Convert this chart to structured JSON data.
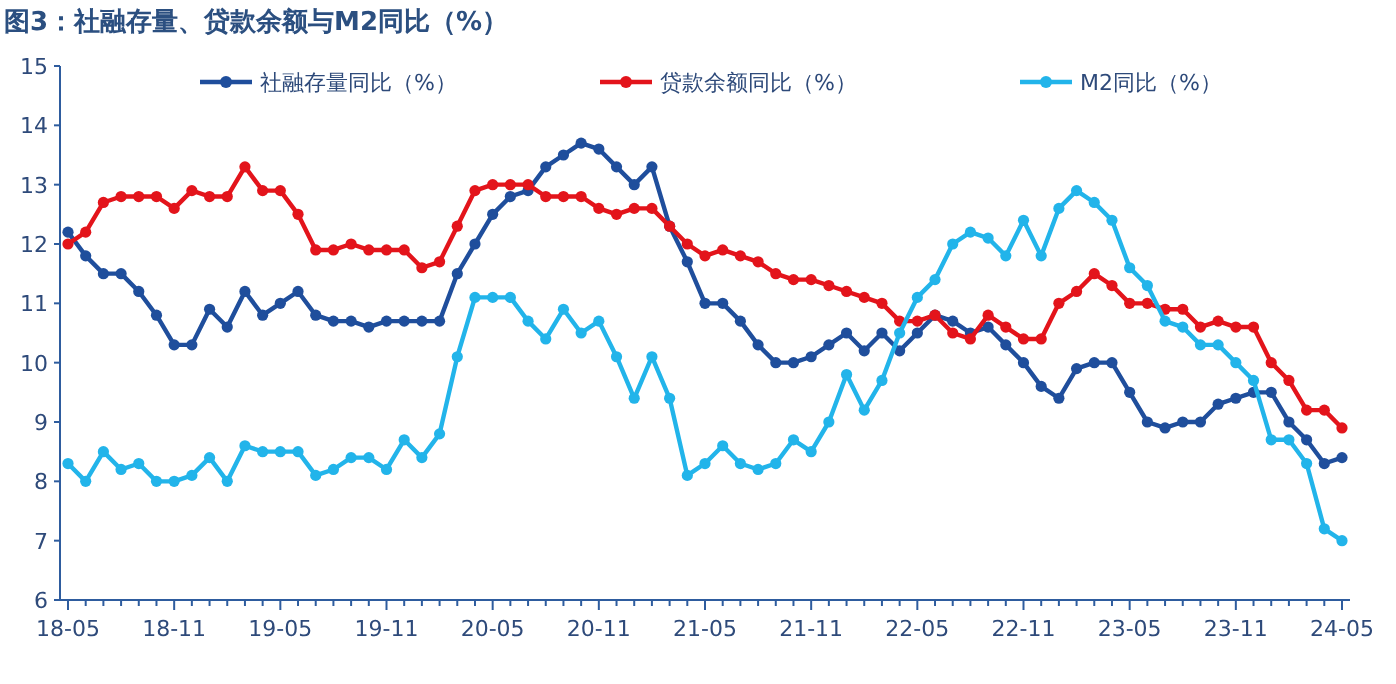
{
  "chart_data": {
    "type": "line",
    "title": "图3：社融存量、贷款余额与M2同比（%）",
    "categories": [
      "18-05",
      null,
      null,
      null,
      null,
      null,
      "18-11",
      null,
      null,
      null,
      null,
      null,
      "19-05",
      null,
      null,
      null,
      null,
      null,
      "19-11",
      null,
      null,
      null,
      null,
      null,
      "20-05",
      null,
      null,
      null,
      null,
      null,
      "20-11",
      null,
      null,
      null,
      null,
      null,
      "21-05",
      null,
      null,
      null,
      null,
      null,
      "21-11",
      null,
      null,
      null,
      null,
      null,
      "22-05",
      null,
      null,
      null,
      null,
      null,
      "22-11",
      null,
      null,
      null,
      null,
      null,
      "23-05",
      null,
      null,
      null,
      null,
      null,
      "23-11",
      null,
      null,
      null,
      null,
      null,
      "24-05"
    ],
    "series": [
      {
        "name": "社融存量同比（%）",
        "color": "#1f4e9c",
        "values": [
          12.2,
          11.8,
          11.5,
          11.5,
          11.2,
          10.8,
          10.3,
          10.3,
          10.9,
          10.6,
          11.2,
          10.8,
          11.0,
          11.2,
          10.8,
          10.7,
          10.7,
          10.6,
          10.7,
          10.7,
          10.7,
          10.7,
          11.5,
          12.0,
          12.5,
          12.8,
          12.9,
          13.3,
          13.5,
          13.7,
          13.6,
          13.3,
          13.0,
          13.3,
          12.3,
          11.7,
          11.0,
          11.0,
          10.7,
          10.3,
          10.0,
          10.0,
          10.1,
          10.3,
          10.5,
          10.2,
          10.5,
          10.2,
          10.5,
          10.8,
          10.7,
          10.5,
          10.6,
          10.3,
          10.0,
          9.6,
          9.4,
          9.9,
          10.0,
          10.0,
          9.5,
          9.0,
          8.9,
          9.0,
          9.0,
          9.3,
          9.4,
          9.5,
          9.5,
          9.0,
          8.7,
          8.3,
          8.4
        ]
      },
      {
        "name": "贷款余额同比（%）",
        "color": "#e3141b",
        "values": [
          12.0,
          12.2,
          12.7,
          12.8,
          12.8,
          12.8,
          12.6,
          12.9,
          12.8,
          12.8,
          13.3,
          12.9,
          12.9,
          12.5,
          11.9,
          11.9,
          12.0,
          11.9,
          11.9,
          11.9,
          11.6,
          11.7,
          12.3,
          12.9,
          13.0,
          13.0,
          13.0,
          12.8,
          12.8,
          12.8,
          12.6,
          12.5,
          12.6,
          12.6,
          12.3,
          12.0,
          11.8,
          11.9,
          11.8,
          11.7,
          11.5,
          11.4,
          11.4,
          11.3,
          11.2,
          11.1,
          11.0,
          10.7,
          10.7,
          10.8,
          10.5,
          10.4,
          10.8,
          10.6,
          10.4,
          10.4,
          11.0,
          11.2,
          11.5,
          11.3,
          11.0,
          11.0,
          10.9,
          10.9,
          10.6,
          10.7,
          10.6,
          10.6,
          10.0,
          9.7,
          9.2,
          9.2,
          8.9
        ]
      },
      {
        "name": "M2同比（%）",
        "color": "#22b4ea",
        "values": [
          8.3,
          8.0,
          8.5,
          8.2,
          8.3,
          8.0,
          8.0,
          8.1,
          8.4,
          8.0,
          8.6,
          8.5,
          8.5,
          8.5,
          8.1,
          8.2,
          8.4,
          8.4,
          8.2,
          8.7,
          8.4,
          8.8,
          10.1,
          11.1,
          11.1,
          11.1,
          10.7,
          10.4,
          10.9,
          10.5,
          10.7,
          10.1,
          9.4,
          10.1,
          9.4,
          8.1,
          8.3,
          8.6,
          8.3,
          8.2,
          8.3,
          8.7,
          8.5,
          9.0,
          9.8,
          9.2,
          9.7,
          10.5,
          11.1,
          11.4,
          12.0,
          12.2,
          12.1,
          11.8,
          12.4,
          11.8,
          12.6,
          12.9,
          12.7,
          12.4,
          11.6,
          11.3,
          10.7,
          10.6,
          10.3,
          10.3,
          10.0,
          9.7,
          8.7,
          8.7,
          8.3,
          7.2,
          7.0
        ]
      }
    ],
    "ylim": [
      6,
      15
    ],
    "yticks": [
      6,
      7,
      8,
      9,
      10,
      11,
      12,
      13,
      14,
      15
    ],
    "legend": "top",
    "marker": "circle",
    "line_style": "solid",
    "grid": false
  }
}
